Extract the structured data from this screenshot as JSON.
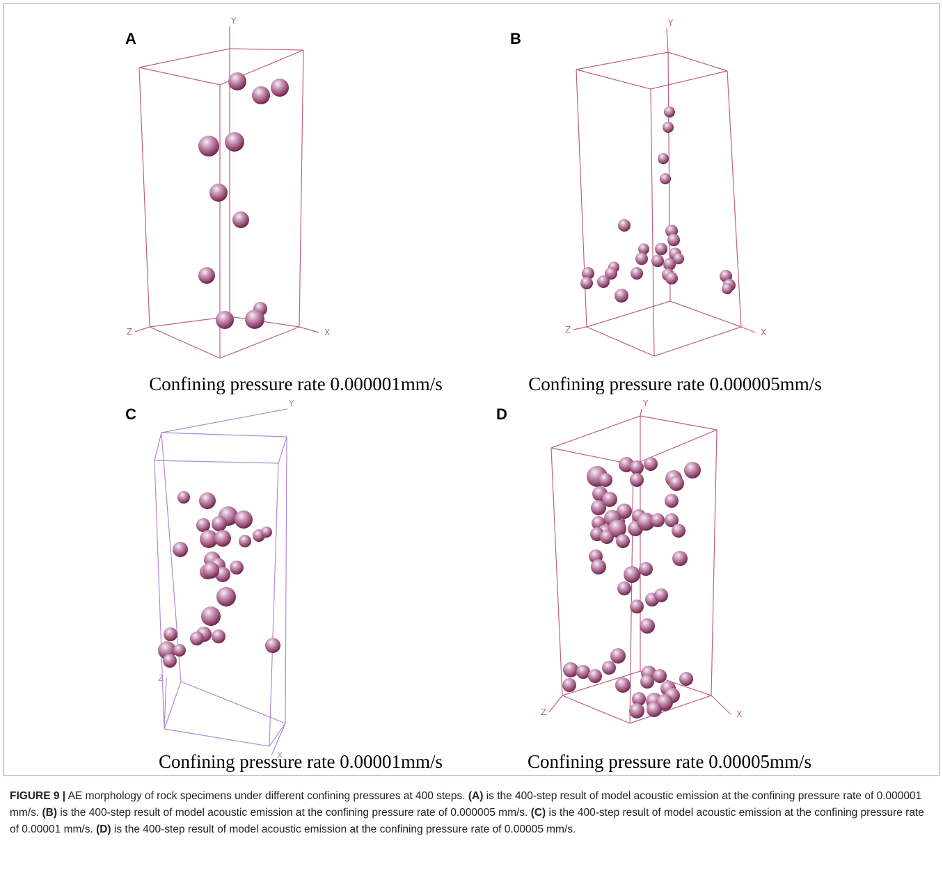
{
  "panels": [
    {
      "label": "A",
      "caption": "Confining pressure rate 0.000001mm/s",
      "axes": {
        "x": "X",
        "y": "Y",
        "z": "Z"
      }
    },
    {
      "label": "B",
      "caption": "Confining pressure rate 0.000005mm/s",
      "axes": {
        "x": "X",
        "y": "Y",
        "z": "Z"
      }
    },
    {
      "label": "C",
      "caption": "Confining pressure rate 0.00001mm/s",
      "axes": {
        "x": "X",
        "y": "Y",
        "z": "Z"
      }
    },
    {
      "label": "D",
      "caption": "Confining pressure rate 0.00005mm/s",
      "axes": {
        "x": "X",
        "y": "Y",
        "z": "Z"
      }
    }
  ],
  "figure_caption": {
    "label": "FIGURE 9 |",
    "text": "AE morphology of rock specimens under different confining pressures at 400 steps.",
    "items": [
      {
        "tag": "(A)",
        "text": "is the 400-step result of model acoustic emission at the confining pressure rate of 0.000001 mm/s."
      },
      {
        "tag": "(B)",
        "text": "is the 400-step result of model acoustic emission at the confining pressure rate of 0.000005 mm/s."
      },
      {
        "tag": "(C)",
        "text": "is the 400-step result of model acoustic emission at the confining pressure rate of 0.00001 mm/s."
      },
      {
        "tag": "(D)",
        "text": "is the 400-step result of model acoustic emission at the confining pressure rate of 0.00005 mm/s."
      }
    ]
  }
}
